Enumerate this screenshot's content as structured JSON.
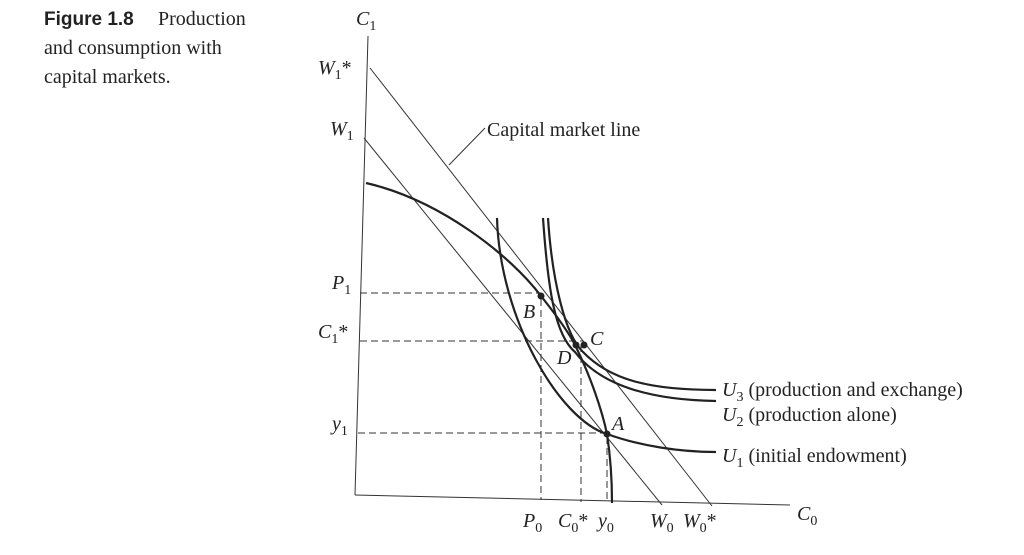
{
  "caption": {
    "figure": "Figure 1.8",
    "lines": [
      "Production",
      "and consumption with",
      "capital markets."
    ]
  },
  "labels": {
    "C1": {
      "main": "C",
      "sub": "1"
    },
    "W1star": {
      "main": "W",
      "sub": "1",
      "suffix": "*"
    },
    "W1": {
      "main": "W",
      "sub": "1"
    },
    "P1": {
      "main": "P",
      "sub": "1"
    },
    "C1star": {
      "main": "C",
      "sub": "1",
      "suffix": "*"
    },
    "y1": {
      "main": "y",
      "sub": "1"
    },
    "C0": {
      "main": "C",
      "sub": "0"
    },
    "P0": {
      "main": "P",
      "sub": "0"
    },
    "C0star": {
      "main": "C",
      "sub": "0",
      "suffix": "*"
    },
    "y0": {
      "main": "y",
      "sub": "0"
    },
    "W0": {
      "main": "W",
      "sub": "0"
    },
    "W0star": {
      "main": "W",
      "sub": "0",
      "suffix": "*"
    },
    "B": {
      "main": "B"
    },
    "C": {
      "main": "C"
    },
    "D": {
      "main": "D"
    },
    "A": {
      "main": "A"
    },
    "U3": {
      "main": "U",
      "sub": "3",
      "suffix": " (production and exchange)"
    },
    "U2": {
      "main": "U",
      "sub": "2",
      "suffix": " (production alone)"
    },
    "U1": {
      "main": "U",
      "sub": "1",
      "suffix": " (initial endowment)"
    }
  },
  "capital_market_line": "Capital market line"
}
